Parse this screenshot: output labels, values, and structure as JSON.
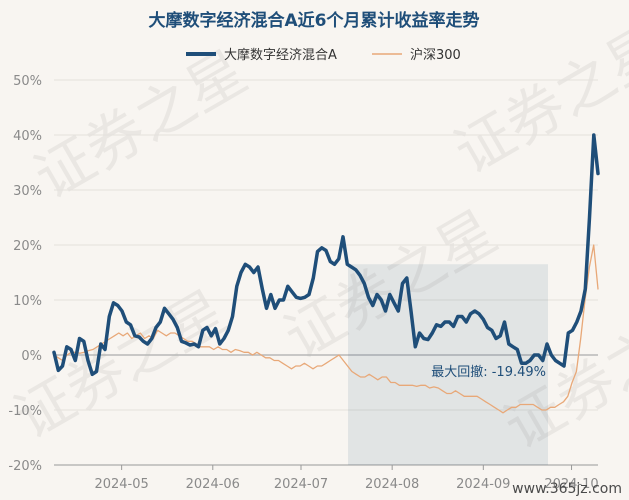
{
  "chart_data": {
    "type": "line",
    "title": "大摩数字经济混合A近6个月累计收益率走势",
    "x_ticks": [
      "2024-05",
      "2024-06",
      "2024-07",
      "2024-08",
      "2024-09",
      "2024-10"
    ],
    "y_ticks": [
      "50%",
      "40%",
      "30%",
      "20%",
      "10%",
      "0%",
      "-10%",
      "-20%"
    ],
    "ylim": [
      -20,
      50
    ],
    "series": [
      {
        "name": "大摩数字经济混合A",
        "color": "#1f4e79",
        "values": [
          0.5,
          -2.8,
          -2,
          1.5,
          1,
          -1,
          3,
          2.5,
          -1,
          -3.5,
          -3,
          2,
          1,
          7,
          9.5,
          9,
          8,
          6,
          5.5,
          3.5,
          3.3,
          2.5,
          2,
          3,
          5,
          6,
          8.5,
          7.5,
          6.5,
          5,
          2.5,
          2.2,
          1.8,
          2,
          1.5,
          4.5,
          5,
          3.5,
          4.8,
          2,
          3,
          4.5,
          7,
          12.5,
          15,
          16.5,
          16,
          15,
          16,
          12,
          8.5,
          11,
          8.5,
          10,
          10,
          12.5,
          11.5,
          10.5,
          10.3,
          10.5,
          11,
          14,
          18.8,
          19.5,
          19,
          17,
          16.5,
          17.5,
          21.5,
          16.5,
          16,
          15.5,
          14.5,
          13,
          10.5,
          9,
          11,
          10,
          8,
          11,
          9.5,
          8,
          13,
          14,
          8,
          1.5,
          4,
          3,
          2.8,
          4,
          5.5,
          5.2,
          6,
          6,
          5.2,
          7,
          7,
          6,
          7.5,
          8,
          7.5,
          6.5,
          5,
          4.5,
          3,
          3.5,
          6,
          2,
          1.5,
          1,
          -1.5,
          -1.5,
          -1,
          0,
          0,
          -1,
          2,
          0,
          -1,
          -1.5,
          -2,
          4,
          4.5,
          6,
          8,
          12,
          25,
          40,
          33
        ],
        "dates_start": "2024-04-08"
      },
      {
        "name": "沪深300",
        "color": "#e8a878",
        "values": [
          0,
          -0.5,
          -1,
          0,
          0.5,
          0.5,
          0.3,
          0.5,
          0.8,
          1,
          1.5,
          2,
          2.5,
          3,
          3.5,
          4,
          3.5,
          4,
          3,
          3.5,
          4,
          3,
          3.5,
          3,
          4.5,
          4,
          3.5,
          4,
          4,
          3.5,
          3,
          2.5,
          2.5,
          2,
          1.5,
          1.5,
          1.5,
          1,
          1.5,
          1,
          1,
          0.5,
          1,
          0.8,
          0.5,
          0.5,
          0,
          0.5,
          0,
          -0.5,
          -0.5,
          -1,
          -1,
          -1.5,
          -2,
          -2.5,
          -2,
          -2,
          -1.5,
          -2,
          -2.5,
          -2,
          -2,
          -1.5,
          -1,
          -0.5,
          0,
          -1,
          -2,
          -3,
          -3.5,
          -4,
          -4,
          -3.5,
          -4,
          -4.5,
          -4,
          -4,
          -5,
          -5,
          -5.5,
          -5.5,
          -5.5,
          -5.5,
          -5.7,
          -5.5,
          -5.5,
          -6,
          -5.8,
          -6,
          -6.5,
          -7,
          -7,
          -6.5,
          -7,
          -7.5,
          -7.5,
          -7.5,
          -7.5,
          -8,
          -8.5,
          -9,
          -9.5,
          -10,
          -10.5,
          -10,
          -9.5,
          -9.5,
          -9,
          -9,
          -9,
          -9,
          -9.5,
          -10,
          -10,
          -9.5,
          -9.5,
          -9,
          -8.5,
          -7.5,
          -5,
          -3,
          3,
          10,
          16,
          20,
          12
        ]
      }
    ],
    "drawdown": {
      "label": "最大回撤: -19.49%",
      "from": "2024-07-17",
      "to": "2024-09-23"
    }
  },
  "watermark": "证券之星",
  "site": "www.365jz.com"
}
